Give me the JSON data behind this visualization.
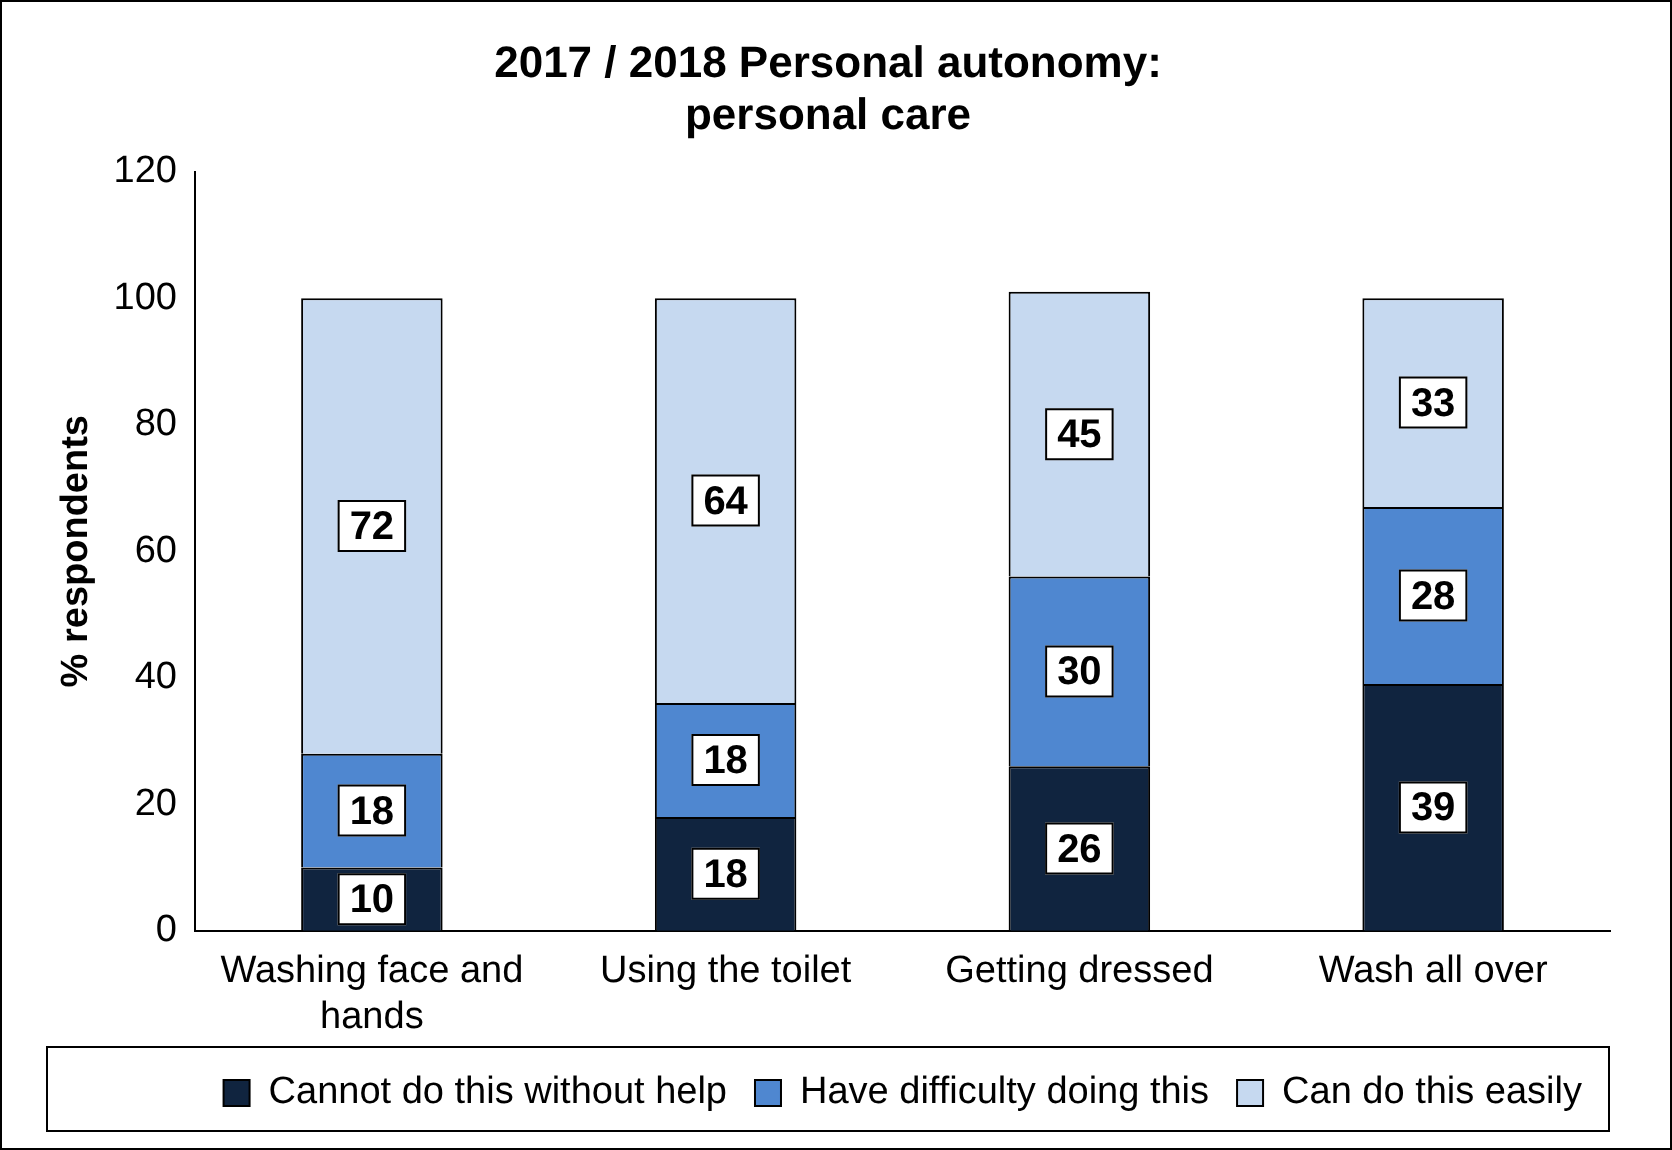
{
  "chart_data": {
    "type": "bar",
    "title": "2017 / 2018 Personal autonomy: personal care",
    "ylabel": "% respondents",
    "categories": [
      "Washing face and hands",
      "Using the toilet",
      "Getting dressed",
      "Wash all over"
    ],
    "stacked": true,
    "series": [
      {
        "name": "Cannot do this without help",
        "color": "#10243f",
        "values": [
          10,
          18,
          26,
          39
        ]
      },
      {
        "name": "Have difficulty doing this",
        "color": "#4f87d0",
        "values": [
          18,
          18,
          30,
          28
        ]
      },
      {
        "name": "Can do this easily",
        "color": "#c6d9f0",
        "values": [
          72,
          64,
          45,
          33
        ]
      }
    ],
    "ylim": [
      0,
      120
    ],
    "yticks": [
      0,
      20,
      40,
      60,
      80,
      100,
      120
    ],
    "grid": false,
    "legend": "bottom",
    "data_labels": true
  }
}
